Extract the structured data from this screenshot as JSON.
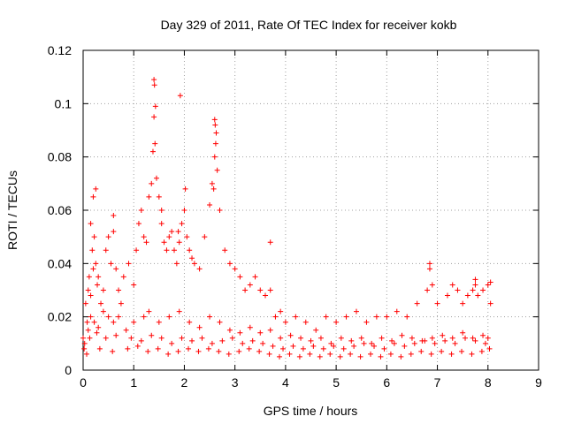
{
  "chart_data": {
    "type": "scatter",
    "title": "Day 329 of 2011, Rate Of TEC Index for receiver kokb",
    "xlabel": "GPS time / hours",
    "ylabel": "ROTI / TECUs",
    "xlim": [
      0,
      9
    ],
    "ylim": [
      0,
      0.12
    ],
    "xticks": [
      "0",
      "1",
      "2",
      "3",
      "4",
      "5",
      "6",
      "7",
      "8",
      "9"
    ],
    "yticks": [
      "0",
      "0.02",
      "0.04",
      "0.06",
      "0.08",
      "0.1",
      "0.12"
    ],
    "grid": true,
    "marker": "+",
    "color": "#ff0000",
    "series": [
      {
        "name": "ROTI",
        "x": [
          0.0,
          0.05,
          0.08,
          0.1,
          0.12,
          0.15,
          0.18,
          0.2,
          0.22,
          0.25,
          0.28,
          0.3,
          0.35,
          0.4,
          0.45,
          0.5,
          0.55,
          0.6,
          0.65,
          0.7,
          0.75,
          0.8,
          0.9,
          1.0,
          1.05,
          1.1,
          1.15,
          1.2,
          1.25,
          1.3,
          1.35,
          1.38,
          1.4,
          1.42,
          1.45,
          1.5,
          1.55,
          1.6,
          1.65,
          1.7,
          1.75,
          1.8,
          1.85,
          1.9,
          1.95,
          2.0,
          2.05,
          2.1,
          2.15,
          2.2,
          2.3,
          2.4,
          2.5,
          2.55,
          2.6,
          2.62,
          2.65,
          2.7,
          2.8,
          2.9,
          3.0,
          3.1,
          3.2,
          3.3,
          3.4,
          3.5,
          3.6,
          3.7,
          3.8,
          3.9,
          4.0,
          4.2,
          4.4,
          4.6,
          4.8,
          5.0,
          5.2,
          5.4,
          5.6,
          5.8,
          6.0,
          6.2,
          6.4,
          6.6,
          6.8,
          6.85,
          6.9,
          7.0,
          7.2,
          7.3,
          7.4,
          7.5,
          7.6,
          7.7,
          7.75,
          7.8,
          7.9,
          8.0,
          8.05,
          0.02,
          0.1,
          0.15,
          0.22,
          0.3,
          0.4,
          0.5,
          0.6,
          0.7,
          0.85,
          1.0,
          1.2,
          1.3,
          1.5,
          1.7,
          1.9,
          2.1,
          2.3,
          2.5,
          2.7,
          2.9,
          3.1,
          3.3,
          3.5,
          3.7,
          3.9,
          4.1,
          4.3,
          4.5,
          4.7,
          4.9,
          5.1,
          5.3,
          5.5,
          5.7,
          5.9,
          6.1,
          6.3,
          6.5,
          6.7,
          6.9,
          7.1,
          7.3,
          7.5,
          7.7,
          7.9,
          8.0,
          0.03,
          0.13,
          0.27,
          0.45,
          0.65,
          0.95,
          1.15,
          1.35,
          1.55,
          1.75,
          1.95,
          2.15,
          2.35,
          2.55,
          2.75,
          2.95,
          3.15,
          3.35,
          3.55,
          3.75,
          3.95,
          4.15,
          4.35,
          4.55,
          4.75,
          4.95,
          5.15,
          5.35,
          5.55,
          5.75,
          5.95,
          6.15,
          6.35,
          6.55,
          6.75,
          6.95,
          7.15,
          7.35,
          7.55,
          7.75,
          7.95,
          0.07,
          0.33,
          0.58,
          0.88,
          1.08,
          1.28,
          1.48,
          1.68,
          1.88,
          2.08,
          2.28,
          2.48,
          2.68,
          2.88,
          3.08,
          3.28,
          3.48,
          3.68,
          3.88,
          4.08,
          4.28,
          4.48,
          4.68,
          4.88,
          5.08,
          5.28,
          5.48,
          5.68,
          5.88,
          6.08,
          6.28,
          6.48,
          6.68,
          6.88,
          7.08,
          7.28,
          7.48,
          7.68,
          7.88,
          8.03,
          1.4,
          1.41,
          1.43,
          2.6,
          2.61,
          2.63,
          1.92,
          2.58,
          2.02,
          0.25,
          0.6,
          1.55,
          1.88,
          3.7,
          6.85,
          7.75,
          8.05,
          0.15,
          0.2
        ],
        "y": [
          0.012,
          0.025,
          0.018,
          0.03,
          0.035,
          0.028,
          0.045,
          0.038,
          0.05,
          0.04,
          0.032,
          0.035,
          0.025,
          0.03,
          0.045,
          0.05,
          0.04,
          0.052,
          0.038,
          0.03,
          0.025,
          0.035,
          0.04,
          0.032,
          0.045,
          0.055,
          0.06,
          0.05,
          0.048,
          0.065,
          0.07,
          0.082,
          0.095,
          0.085,
          0.072,
          0.065,
          0.055,
          0.048,
          0.045,
          0.05,
          0.052,
          0.045,
          0.04,
          0.048,
          0.055,
          0.06,
          0.05,
          0.045,
          0.042,
          0.04,
          0.038,
          0.05,
          0.062,
          0.07,
          0.08,
          0.085,
          0.075,
          0.06,
          0.045,
          0.04,
          0.038,
          0.035,
          0.03,
          0.032,
          0.035,
          0.03,
          0.028,
          0.03,
          0.02,
          0.022,
          0.018,
          0.02,
          0.018,
          0.015,
          0.02,
          0.018,
          0.02,
          0.022,
          0.018,
          0.02,
          0.02,
          0.022,
          0.02,
          0.025,
          0.03,
          0.038,
          0.032,
          0.025,
          0.028,
          0.032,
          0.03,
          0.025,
          0.028,
          0.03,
          0.032,
          0.028,
          0.03,
          0.032,
          0.025,
          0.008,
          0.015,
          0.02,
          0.018,
          0.016,
          0.022,
          0.02,
          0.018,
          0.02,
          0.015,
          0.018,
          0.02,
          0.022,
          0.018,
          0.02,
          0.022,
          0.018,
          0.016,
          0.02,
          0.018,
          0.015,
          0.014,
          0.016,
          0.014,
          0.015,
          0.012,
          0.013,
          0.012,
          0.011,
          0.012,
          0.01,
          0.012,
          0.011,
          0.012,
          0.01,
          0.012,
          0.011,
          0.013,
          0.012,
          0.011,
          0.012,
          0.013,
          0.012,
          0.014,
          0.012,
          0.013,
          0.012,
          0.01,
          0.012,
          0.014,
          0.012,
          0.013,
          0.012,
          0.011,
          0.013,
          0.012,
          0.01,
          0.012,
          0.011,
          0.012,
          0.01,
          0.011,
          0.012,
          0.01,
          0.011,
          0.01,
          0.009,
          0.008,
          0.009,
          0.008,
          0.009,
          0.008,
          0.009,
          0.008,
          0.009,
          0.01,
          0.009,
          0.008,
          0.01,
          0.009,
          0.01,
          0.011,
          0.01,
          0.011,
          0.01,
          0.012,
          0.011,
          0.01,
          0.006,
          0.008,
          0.007,
          0.008,
          0.009,
          0.007,
          0.008,
          0.006,
          0.007,
          0.008,
          0.007,
          0.008,
          0.007,
          0.006,
          0.007,
          0.008,
          0.007,
          0.006,
          0.005,
          0.006,
          0.005,
          0.006,
          0.005,
          0.006,
          0.005,
          0.006,
          0.005,
          0.006,
          0.005,
          0.006,
          0.005,
          0.006,
          0.007,
          0.006,
          0.007,
          0.006,
          0.007,
          0.006,
          0.007,
          0.008,
          0.109,
          0.107,
          0.099,
          0.094,
          0.092,
          0.089,
          0.103,
          0.068,
          0.068,
          0.068,
          0.058,
          0.06,
          0.052,
          0.048,
          0.04,
          0.034,
          0.033,
          0.055,
          0.065
        ]
      }
    ]
  }
}
